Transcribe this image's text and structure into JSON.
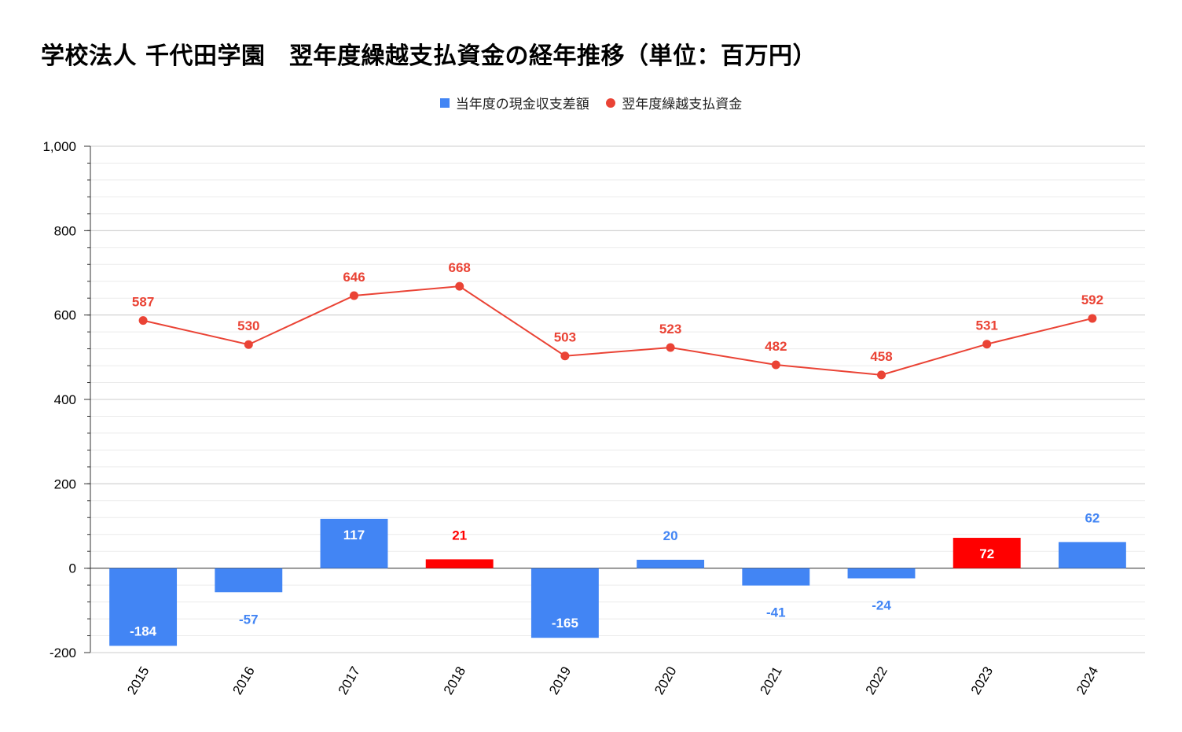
{
  "chart_data": {
    "type": "bar",
    "title": "学校法人 千代田学園　翌年度繰越支払資金の経年推移（単位：百万円）",
    "categories": [
      "2015",
      "2016",
      "2017",
      "2018",
      "2019",
      "2020",
      "2021",
      "2022",
      "2023",
      "2024"
    ],
    "ylim": [
      -200,
      1000
    ],
    "y_ticks": [
      -200,
      0,
      200,
      400,
      600,
      800,
      1000
    ],
    "y_tick_labels": [
      "-200",
      "0",
      "200",
      "400",
      "600",
      "800",
      "1,000"
    ],
    "grid": true,
    "legend_position": "top",
    "series": [
      {
        "name": "当年度の現金収支差額",
        "type": "bar",
        "color": "#4285f4",
        "values": [
          -184,
          -57,
          117,
          21,
          -165,
          20,
          -41,
          -24,
          72,
          62
        ],
        "bar_colors": [
          "#4285f4",
          "#4285f4",
          "#4285f4",
          "#ff0000",
          "#4285f4",
          "#4285f4",
          "#4285f4",
          "#4285f4",
          "#ff0000",
          "#4285f4"
        ],
        "labels": [
          "-184",
          "-57",
          "117",
          "21",
          "-165",
          "20",
          "-41",
          "-24",
          "72",
          "62"
        ]
      },
      {
        "name": "翌年度繰越支払資金",
        "type": "line",
        "color": "#ea4335",
        "values": [
          587,
          530,
          646,
          668,
          503,
          523,
          482,
          458,
          531,
          592
        ],
        "labels": [
          "587",
          "530",
          "646",
          "668",
          "503",
          "523",
          "482",
          "458",
          "531",
          "592"
        ]
      }
    ]
  }
}
